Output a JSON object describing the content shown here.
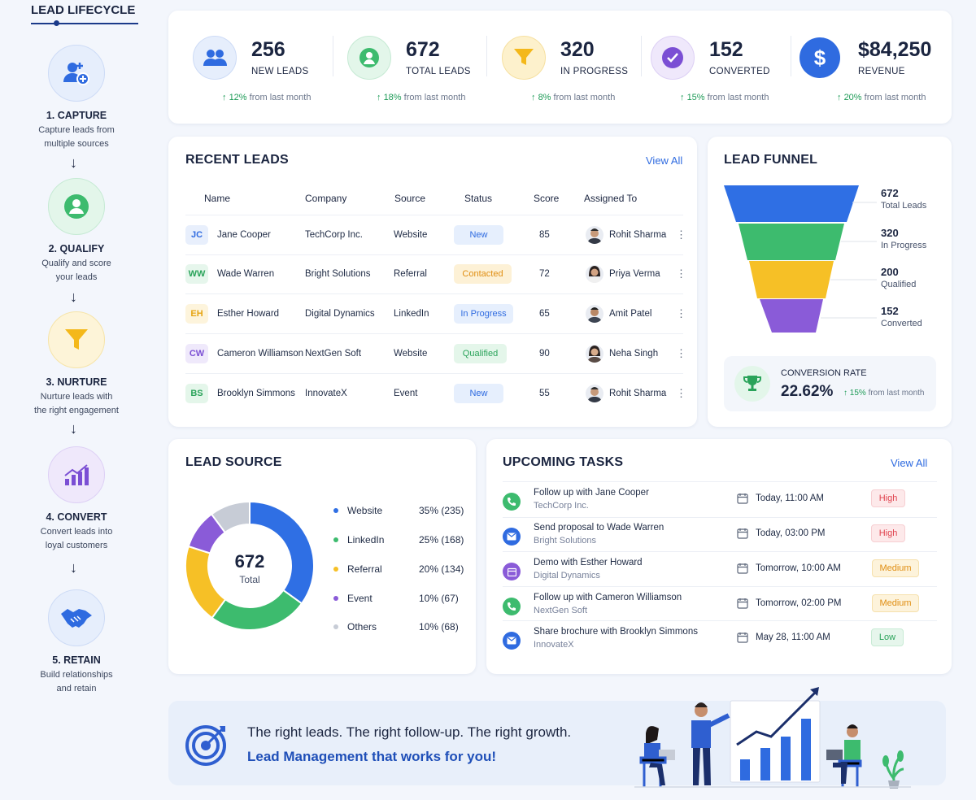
{
  "sidebar": {
    "title": "LEAD LIFECYCLE",
    "steps": [
      {
        "title": "1. CAPTURE",
        "desc1": "Capture leads from",
        "desc2": "multiple sources"
      },
      {
        "title": "2. QUALIFY",
        "desc1": "Qualify and score",
        "desc2": "your leads"
      },
      {
        "title": "3. NURTURE",
        "desc1": "Nurture leads with",
        "desc2": "the right engagement"
      },
      {
        "title": "4. CONVERT",
        "desc1": "Convert leads into",
        "desc2": "loyal customers"
      },
      {
        "title": "5. RETAIN",
        "desc1": "Build relationships",
        "desc2": "and retain"
      }
    ],
    "arrow": "↓"
  },
  "kpis": [
    {
      "value": "256",
      "label": "NEW LEADS",
      "change": "12%",
      "change_text": "from last month",
      "icon": "users-icon"
    },
    {
      "value": "672",
      "label": "TOTAL LEADS",
      "change": "18%",
      "change_text": "from last month",
      "icon": "user-icon"
    },
    {
      "value": "320",
      "label": "IN PROGRESS",
      "change": "8%",
      "change_text": "from last month",
      "icon": "filter-icon"
    },
    {
      "value": "152",
      "label": "CONVERTED",
      "change": "15%",
      "change_text": "from last month",
      "icon": "check-icon"
    },
    {
      "value": "$84,250",
      "label": "REVENUE",
      "change": "20%",
      "change_text": "from last month",
      "icon": "dollar-icon"
    }
  ],
  "recent_leads": {
    "title": "RECENT LEADS",
    "view_all": "View All",
    "columns": [
      "Name",
      "Company",
      "Source",
      "Status",
      "Score",
      "Assigned To"
    ],
    "rows": [
      {
        "initials": "JC",
        "name": "Jane Cooper",
        "company": "TechCorp Inc.",
        "source": "Website",
        "status": "New",
        "score": "85",
        "assigned": "Rohit Sharma"
      },
      {
        "initials": "WW",
        "name": "Wade Warren",
        "company": "Bright Solutions",
        "source": "Referral",
        "status": "Contacted",
        "score": "72",
        "assigned": "Priya Verma"
      },
      {
        "initials": "EH",
        "name": "Esther Howard",
        "company": "Digital Dynamics",
        "source": "LinkedIn",
        "status": "In Progress",
        "score": "65",
        "assigned": "Amit Patel"
      },
      {
        "initials": "CW",
        "name": "Cameron Williamson",
        "company": "NextGen Soft",
        "source": "Website",
        "status": "Qualified",
        "score": "90",
        "assigned": "Neha Singh"
      },
      {
        "initials": "BS",
        "name": "Brooklyn Simmons",
        "company": "InnovateX",
        "source": "Event",
        "status": "New",
        "score": "55",
        "assigned": "Rohit Sharma"
      }
    ]
  },
  "funnel": {
    "title": "LEAD FUNNEL",
    "stages": [
      {
        "value": "672",
        "label": "Total Leads"
      },
      {
        "value": "320",
        "label": "In Progress"
      },
      {
        "value": "200",
        "label": "Qualified"
      },
      {
        "value": "152",
        "label": "Converted"
      }
    ],
    "conversion_label": "CONVERSION RATE",
    "conversion_value": "22.62%",
    "conversion_change": "15%",
    "conversion_change_text": "from last month"
  },
  "lead_source": {
    "title": "LEAD SOURCE",
    "total": "672",
    "total_label": "Total",
    "items": [
      {
        "name": "Website",
        "pct": "35% (235)"
      },
      {
        "name": "LinkedIn",
        "pct": "25% (168)"
      },
      {
        "name": "Referral",
        "pct": "20% (134)"
      },
      {
        "name": "Event",
        "pct": "10% (67)"
      },
      {
        "name": "Others",
        "pct": "10% (68)"
      }
    ]
  },
  "chart_data": {
    "type": "pie",
    "categories": [
      "Website",
      "LinkedIn",
      "Referral",
      "Event",
      "Others"
    ],
    "values": [
      235,
      168,
      134,
      67,
      68
    ],
    "colors": [
      "#2f6fe4",
      "#3dbb6e",
      "#f6c026",
      "#8a5bd8",
      "#c7ccd6"
    ],
    "title": "LEAD SOURCE"
  },
  "tasks": {
    "title": "UPCOMING TASKS",
    "view_all": "View All",
    "items": [
      {
        "title": "Follow up with Jane Cooper",
        "sub": "TechCorp Inc.",
        "date": "Today, 11:00 AM",
        "priority": "High",
        "icon": "phone-icon"
      },
      {
        "title": "Send proposal to Wade Warren",
        "sub": "Bright Solutions",
        "date": "Today, 03:00 PM",
        "priority": "High",
        "icon": "mail-icon"
      },
      {
        "title": "Demo with Esther Howard",
        "sub": "Digital Dynamics",
        "date": "Tomorrow, 10:00 AM",
        "priority": "Medium",
        "icon": "calendar-icon"
      },
      {
        "title": "Follow up with Cameron Williamson",
        "sub": "NextGen Soft",
        "date": "Tomorrow, 02:00 PM",
        "priority": "Medium",
        "icon": "phone-icon"
      },
      {
        "title": "Share brochure with Brooklyn Simmons",
        "sub": "InnovateX",
        "date": "May 28, 11:00 AM",
        "priority": "Low",
        "icon": "mail-icon"
      }
    ]
  },
  "banner": {
    "line1": "The right leads. The right follow-up. The right growth.",
    "line2": "Lead Management that works for you!"
  },
  "colors": {
    "accent": "#2f6be0",
    "green": "#1e9b57",
    "navy": "#1b2540"
  }
}
